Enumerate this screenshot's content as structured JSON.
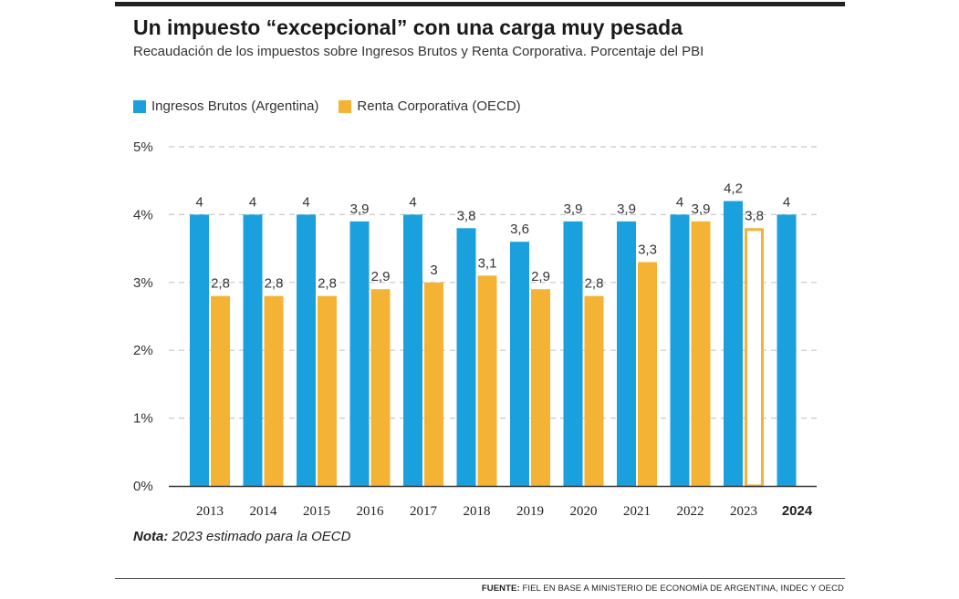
{
  "header": {
    "title": "Un impuesto “excepcional” con una carga muy pesada",
    "subtitle": "Recaudación de los impuestos sobre Ingresos Brutos y Renta Corporativa. Porcentaje del PBI"
  },
  "legend": {
    "ingresos_label": "Ingresos Brutos (Argentina)",
    "renta_label": "Renta Corporativa (OECD)"
  },
  "footer": {
    "note_label": "Nota:",
    "note_text": "2023 estimado para la OECD",
    "source_label": "FUENTE:",
    "source_text": "FIEL EN BASE A MINISTERIO DE ECONOMÍA DE ARGENTINA, INDEC Y OECD"
  },
  "colors": {
    "ingresos": "#1ba0de",
    "renta": "#f5b335",
    "grid": "#c8c8c8",
    "axis": "#333333"
  },
  "chart_data": {
    "type": "bar",
    "title": "Un impuesto “excepcional” con una carga muy pesada",
    "subtitle": "Recaudación de los impuestos sobre Ingresos Brutos y Renta Corporativa. Porcentaje del PBI",
    "xlabel": "",
    "ylabel": "",
    "ylim": [
      0,
      5
    ],
    "y_ticks": [
      0,
      1,
      2,
      3,
      4,
      5
    ],
    "y_tick_labels": [
      "0%",
      "1%",
      "2%",
      "3%",
      "4%",
      "5%"
    ],
    "grid": true,
    "legend_position": "top-left",
    "categories": [
      "2013",
      "2014",
      "2015",
      "2016",
      "2017",
      "2018",
      "2019",
      "2020",
      "2021",
      "2022",
      "2023",
      "2024"
    ],
    "bold_categories": [
      "2024"
    ],
    "series": [
      {
        "name": "Ingresos Brutos (Argentina)",
        "values": [
          4,
          4,
          4,
          3.9,
          4,
          3.8,
          3.6,
          3.9,
          3.9,
          4,
          4.2,
          4
        ],
        "labels": [
          "4",
          "4",
          "4",
          "3,9",
          "4",
          "3,8",
          "3,6",
          "3,9",
          "3,9",
          "4",
          "4,2",
          "4"
        ]
      },
      {
        "name": "Renta Corporativa (OECD)",
        "values": [
          2.8,
          2.8,
          2.8,
          2.9,
          3,
          3.1,
          2.9,
          2.8,
          3.3,
          3.9,
          3.8,
          null
        ],
        "labels": [
          "2,8",
          "2,8",
          "2,8",
          "2,9",
          "3",
          "3,1",
          "2,9",
          "2,8",
          "3,3",
          "3,9",
          "3,8",
          null
        ],
        "estimated": [
          false,
          false,
          false,
          false,
          false,
          false,
          false,
          false,
          false,
          false,
          true,
          false
        ]
      }
    ]
  }
}
